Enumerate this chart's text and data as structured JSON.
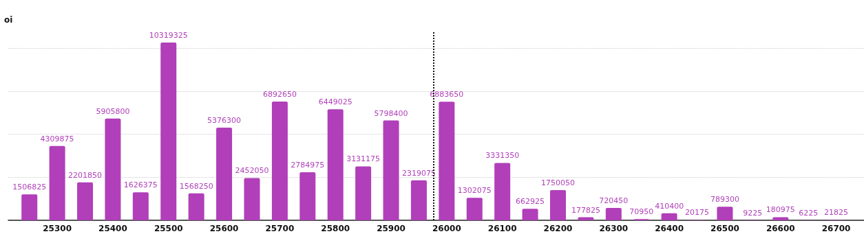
{
  "chart_data": {
    "type": "bar",
    "ylabel": "oi",
    "x": [
      25250,
      25300,
      25350,
      25400,
      25450,
      25500,
      25550,
      25600,
      25650,
      25700,
      25750,
      25800,
      25850,
      25900,
      25950,
      26000,
      26050,
      26100,
      26150,
      26200,
      26250,
      26300,
      26350,
      26400,
      26450,
      26500,
      26550,
      26600,
      26650,
      26700
    ],
    "values": [
      1506825,
      4309875,
      2201850,
      5905800,
      1626375,
      10319325,
      1568250,
      5376300,
      2452050,
      6892650,
      2784975,
      6449025,
      3131175,
      5798400,
      2319075,
      6883650,
      1302075,
      3331350,
      662925,
      1750050,
      177825,
      720450,
      70950,
      410400,
      20175,
      789300,
      9225,
      180975,
      6225,
      21825
    ],
    "color": "#b03fb9",
    "data_labels": true,
    "xlim": [
      25212,
      26750
    ],
    "xticks": [
      25300,
      25400,
      25500,
      25600,
      25700,
      25800,
      25900,
      26000,
      26100,
      26200,
      26300,
      26400,
      26500,
      26600,
      26700
    ],
    "ylim": [
      0,
      11000000
    ],
    "yticks": [
      {
        "value": 0,
        "label": null
      },
      {
        "value": 2500000,
        "label": null
      },
      {
        "value": 5000000,
        "label": null
      },
      {
        "value": 7500000,
        "label": null
      },
      {
        "value": 10000000,
        "label": null
      }
    ],
    "grid": "y",
    "tick_labels": "x",
    "ref_lines": [
      {
        "axis": "x",
        "value": 25976,
        "color": "#111111",
        "line_style": "dotted"
      }
    ]
  }
}
